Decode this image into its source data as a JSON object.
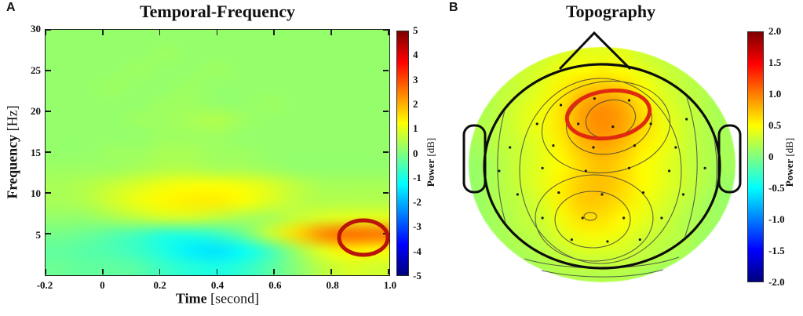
{
  "figure": {
    "background": "#ffffff",
    "panels": [
      {
        "label": "A"
      },
      {
        "label": "B"
      }
    ]
  },
  "chart_data": [
    {
      "id": "temporal-frequency-spectrogram",
      "type": "heatmap",
      "title": "Temporal-Frequency",
      "xlabel_bold": "Time",
      "xlabel_unit": " [second]",
      "ylabel_bold": "Frequency",
      "ylabel_unit": " [Hz]",
      "xlim": [
        -0.2,
        1.0
      ],
      "ylim": [
        0,
        30
      ],
      "x_ticks": [
        "-0.2",
        "0",
        "0.2",
        "0.4",
        "0.6",
        "0.8",
        "1.0"
      ],
      "y_ticks": [
        "30",
        "25",
        "20",
        "15",
        "10",
        "5"
      ],
      "colormap": "jet",
      "clim": [
        -5,
        5
      ],
      "colorbar_label_bold": "Power",
      "colorbar_label_unit": " [dB]",
      "colorbar_ticks": [
        "5",
        "4",
        "3",
        "2",
        "1",
        "0",
        "-1",
        "-2",
        "-3",
        "-4",
        "-5"
      ],
      "grid_time": [
        -0.2,
        -0.1,
        0,
        0.1,
        0.2,
        0.3,
        0.4,
        0.5,
        0.6,
        0.7,
        0.8,
        0.9,
        1.0
      ],
      "grid_freq": [
        29,
        27,
        25,
        23,
        21,
        19,
        17,
        15,
        13,
        11,
        9,
        7,
        5,
        3,
        1
      ],
      "values_db": [
        [
          0.2,
          0.2,
          0.2,
          0.2,
          0.2,
          0.2,
          0.2,
          0.2,
          0.2,
          0.2,
          0.2,
          0.2,
          0.2
        ],
        [
          0.2,
          0.2,
          0.2,
          0.2,
          0.3,
          0.2,
          0.2,
          0.2,
          0.2,
          0.2,
          0.2,
          0.2,
          0.2
        ],
        [
          0.2,
          0.2,
          0.2,
          0.3,
          0.2,
          0.2,
          0.3,
          0.2,
          0.2,
          0.2,
          0.2,
          0.2,
          0.2
        ],
        [
          0.2,
          0.2,
          0.3,
          0.2,
          0.2,
          0.3,
          0.2,
          0.2,
          0.2,
          0.2,
          0.2,
          0.2,
          0.2
        ],
        [
          0.2,
          0.2,
          0.2,
          0.2,
          0.3,
          0.3,
          0.2,
          0.2,
          0.3,
          0.2,
          0.2,
          0.2,
          0.2
        ],
        [
          0.2,
          0.2,
          0.2,
          0.3,
          0.3,
          0.4,
          0.5,
          0.3,
          0.2,
          0.2,
          0.2,
          0.2,
          0.2
        ],
        [
          0.2,
          0.2,
          0.2,
          0.2,
          0.3,
          0.3,
          0.3,
          0.2,
          0.2,
          0.2,
          0.2,
          0.2,
          0.2
        ],
        [
          0.2,
          0.2,
          0.3,
          0.3,
          0.4,
          0.4,
          0.3,
          0.3,
          0.2,
          0.2,
          0.2,
          0.2,
          0.2
        ],
        [
          0.3,
          0.3,
          0.3,
          0.4,
          0.5,
          0.5,
          0.4,
          0.4,
          0.3,
          0.2,
          0.2,
          0.2,
          0.2
        ],
        [
          0.4,
          0.5,
          0.7,
          0.9,
          1.1,
          1.2,
          1.2,
          1.1,
          0.9,
          0.6,
          0.4,
          0.4,
          0.4
        ],
        [
          0.4,
          0.5,
          0.8,
          1.1,
          1.3,
          1.4,
          1.4,
          1.2,
          0.9,
          0.6,
          0.5,
          0.5,
          0.5
        ],
        [
          0.2,
          0.2,
          0.4,
          0.6,
          0.8,
          0.8,
          0.6,
          0.4,
          0.4,
          0.7,
          0.9,
          1.0,
          1.0
        ],
        [
          -0.1,
          -0.2,
          -0.4,
          -0.6,
          -0.9,
          -0.9,
          -0.7,
          -0.2,
          0.7,
          1.6,
          2.4,
          2.7,
          2.6
        ],
        [
          -0.3,
          -0.4,
          -0.5,
          -0.7,
          -1.0,
          -1.4,
          -1.5,
          -1.2,
          -0.6,
          0.3,
          1.0,
          1.4,
          1.2
        ],
        [
          -0.2,
          -0.3,
          -0.3,
          -0.4,
          -0.7,
          -0.9,
          -1.0,
          -0.8,
          -0.4,
          0.1,
          0.6,
          0.9,
          0.8
        ]
      ],
      "annotation": {
        "shape": "ellipse",
        "time_center": 0.9,
        "freq_center": 5,
        "color": "#b91409"
      }
    },
    {
      "id": "topography",
      "type": "topomap",
      "title": "Topography",
      "colormap": "jet",
      "clim": [
        -2,
        2
      ],
      "colorbar_label_bold": "Power",
      "colorbar_label_unit": " [dB]",
      "colorbar_ticks": [
        "2.0",
        "1.5",
        "1.0",
        "0.5",
        "0",
        "-0.5",
        "-1.0",
        "-1.5",
        "-2.0"
      ],
      "values_db": [
        [
          0.1,
          0.15,
          0.2,
          0.3,
          0.35,
          0.4,
          0.4,
          0.4,
          0.3,
          0.25,
          0.2,
          0.15,
          0.1
        ],
        [
          0.15,
          0.2,
          0.3,
          0.35,
          0.45,
          0.5,
          0.55,
          0.5,
          0.4,
          0.3,
          0.25,
          0.2,
          0.15
        ],
        [
          0.15,
          0.25,
          0.3,
          0.4,
          0.55,
          0.7,
          0.75,
          0.7,
          0.5,
          0.35,
          0.25,
          0.2,
          0.15
        ],
        [
          0.15,
          0.25,
          0.35,
          0.45,
          0.6,
          0.85,
          0.95,
          0.85,
          0.6,
          0.4,
          0.3,
          0.2,
          0.15
        ],
        [
          0.2,
          0.25,
          0.35,
          0.45,
          0.6,
          0.85,
          0.95,
          0.85,
          0.65,
          0.45,
          0.3,
          0.2,
          0.15
        ],
        [
          0.15,
          0.25,
          0.3,
          0.4,
          0.55,
          0.75,
          0.85,
          0.75,
          0.55,
          0.45,
          0.3,
          0.2,
          0.15
        ],
        [
          0.1,
          0.2,
          0.3,
          0.4,
          0.5,
          0.65,
          0.75,
          0.65,
          0.5,
          0.4,
          0.3,
          0.2,
          0.15
        ],
        [
          0.1,
          0.2,
          0.3,
          0.4,
          0.55,
          0.7,
          0.75,
          0.65,
          0.5,
          0.4,
          0.3,
          0.2,
          0.1
        ],
        [
          0.1,
          0.2,
          0.25,
          0.35,
          0.55,
          0.7,
          0.7,
          0.6,
          0.45,
          0.35,
          0.25,
          0.15,
          0.1
        ],
        [
          0.1,
          0.15,
          0.25,
          0.3,
          0.45,
          0.6,
          0.6,
          0.5,
          0.4,
          0.3,
          0.2,
          0.15,
          0.1
        ],
        [
          0.1,
          0.15,
          0.2,
          0.25,
          0.35,
          0.45,
          0.45,
          0.4,
          0.3,
          0.25,
          0.2,
          0.1,
          0.1
        ],
        [
          0.05,
          0.1,
          0.15,
          0.2,
          0.25,
          0.3,
          0.3,
          0.3,
          0.25,
          0.2,
          0.15,
          0.1,
          0.05
        ],
        [
          0.05,
          0.05,
          0.1,
          0.15,
          0.2,
          0.2,
          0.2,
          0.2,
          0.15,
          0.1,
          0.1,
          0.05,
          0.05
        ]
      ],
      "electrodes": [
        [
          -0.07,
          -0.72
        ],
        [
          0.25,
          -0.7
        ],
        [
          -0.38,
          -0.65
        ],
        [
          -0.6,
          -0.45
        ],
        [
          -0.22,
          -0.45
        ],
        [
          0.1,
          -0.42
        ],
        [
          0.45,
          -0.45
        ],
        [
          0.78,
          -0.5
        ],
        [
          -0.85,
          -0.2
        ],
        [
          -0.45,
          -0.22
        ],
        [
          -0.08,
          -0.2
        ],
        [
          0.3,
          -0.22
        ],
        [
          0.68,
          -0.2
        ],
        [
          -0.95,
          0.05
        ],
        [
          -0.55,
          0.02
        ],
        [
          -0.15,
          0.05
        ],
        [
          0.25,
          0.02
        ],
        [
          0.62,
          0.05
        ],
        [
          0.95,
          0.02
        ],
        [
          -0.78,
          0.3
        ],
        [
          -0.4,
          0.28
        ],
        [
          0.0,
          0.3
        ],
        [
          0.38,
          0.28
        ],
        [
          0.75,
          0.3
        ],
        [
          -0.55,
          0.55
        ],
        [
          -0.18,
          0.55
        ],
        [
          0.2,
          0.55
        ],
        [
          0.55,
          0.55
        ],
        [
          -0.28,
          0.78
        ],
        [
          0.05,
          0.8
        ],
        [
          0.35,
          0.78
        ]
      ],
      "annotation": {
        "shape": "ellipse",
        "region": "fronto-central",
        "color": "#df2a10"
      }
    }
  ]
}
